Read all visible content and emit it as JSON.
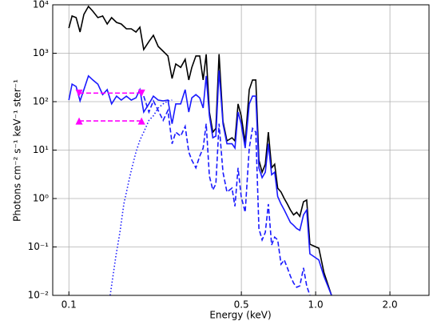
{
  "chart_data": {
    "type": "line",
    "xlabel": "Energy (keV)",
    "ylabel": "Photons cm⁻² s⁻¹ keV⁻¹ ster⁻¹",
    "xscale": "log",
    "yscale": "log",
    "grid": true,
    "xlim": [
      0.086,
      2.88
    ],
    "ylim": [
      0.01,
      10000
    ],
    "xticks": [
      0.1,
      0.5,
      {
        "value": 1,
        "label": "1.0"
      },
      {
        "value": 2,
        "label": "2.0"
      }
    ],
    "yticks": [
      {
        "value": 0.01,
        "label": "10⁻²"
      },
      {
        "value": 0.1,
        "label": "10⁻¹"
      },
      {
        "value": 1,
        "label": "10⁰"
      },
      {
        "value": 10,
        "label": "10¹"
      },
      {
        "value": 100,
        "label": "10²"
      },
      {
        "value": 1000,
        "label": "10³"
      },
      {
        "value": 10000,
        "label": "10⁴"
      }
    ],
    "series": [
      {
        "color": "#000000",
        "linestyle": "solid",
        "x": [
          0.1,
          0.103,
          0.107,
          0.111,
          0.115,
          0.12,
          0.125,
          0.131,
          0.137,
          0.143,
          0.149,
          0.156,
          0.163,
          0.171,
          0.179,
          0.187,
          0.194,
          0.201,
          0.211,
          0.22,
          0.23,
          0.241,
          0.252,
          0.262,
          0.271,
          0.284,
          0.296,
          0.306,
          0.315,
          0.327,
          0.339,
          0.35,
          0.36,
          0.371,
          0.383,
          0.394,
          0.406,
          0.421,
          0.437,
          0.458,
          0.471,
          0.485,
          0.499,
          0.518,
          0.538,
          0.555,
          0.572,
          0.589,
          0.607,
          0.625,
          0.643,
          0.663,
          0.682,
          0.702,
          0.724,
          0.746,
          0.768,
          0.79,
          0.814,
          0.838,
          0.863,
          0.893,
          0.92,
          0.948,
          1.03,
          1.08,
          1.14,
          1.16
        ],
        "values": [
          3300,
          5870,
          5440,
          2740,
          6330,
          9270,
          7370,
          5440,
          5870,
          4010,
          5440,
          4330,
          4010,
          3190,
          3190,
          2740,
          3440,
          1190,
          1740,
          2350,
          1380,
          1100,
          880,
          300,
          600,
          510,
          750,
          280,
          510,
          880,
          880,
          280,
          950,
          61,
          23.5,
          28,
          960,
          39,
          15.5,
          18,
          15.5,
          90,
          51,
          14.3,
          177,
          280,
          280,
          6.2,
          3.5,
          5.1,
          23.5,
          4.3,
          5.1,
          1.64,
          1.36,
          1.0,
          0.77,
          0.58,
          0.46,
          0.52,
          0.43,
          0.86,
          0.93,
          0.114,
          0.094,
          0.03,
          0.013,
          0.01
        ]
      },
      {
        "color": "#1a1aff",
        "linestyle": "solid",
        "x": [
          0.1,
          0.103,
          0.107,
          0.111,
          0.115,
          0.12,
          0.125,
          0.131,
          0.137,
          0.143,
          0.149,
          0.156,
          0.163,
          0.171,
          0.179,
          0.187,
          0.194,
          0.201,
          0.211,
          0.22,
          0.23,
          0.241,
          0.252,
          0.262,
          0.271,
          0.284,
          0.296,
          0.306,
          0.315,
          0.327,
          0.339,
          0.35,
          0.36,
          0.371,
          0.383,
          0.394,
          0.406,
          0.421,
          0.437,
          0.458,
          0.471,
          0.485,
          0.499,
          0.518,
          0.538,
          0.555,
          0.572,
          0.589,
          0.607,
          0.625,
          0.643,
          0.663,
          0.682,
          0.702,
          0.724,
          0.746,
          0.768,
          0.79,
          0.814,
          0.838,
          0.863,
          0.893,
          0.92,
          0.948,
          1.03,
          1.08,
          1.16
        ],
        "values": [
          108,
          230,
          205,
          104,
          177,
          340,
          280,
          230,
          140,
          177,
          90,
          130,
          108,
          130,
          108,
          120,
          177,
          61,
          90,
          130,
          108,
          104,
          108,
          35,
          90,
          90,
          177,
          61,
          120,
          140,
          120,
          74,
          340,
          51,
          18,
          19.5,
          440,
          35,
          13.5,
          13.5,
          11,
          61,
          35,
          11,
          90,
          130,
          130,
          4.3,
          2.7,
          3.5,
          13.5,
          3.1,
          3.5,
          1.1,
          0.77,
          0.58,
          0.43,
          0.32,
          0.28,
          0.24,
          0.22,
          0.46,
          0.58,
          0.072,
          0.054,
          0.025,
          0.01
        ]
      },
      {
        "color": "#1a1aff",
        "linestyle": "dashed",
        "x": [
          0.201,
          0.211,
          0.22,
          0.23,
          0.241,
          0.252,
          0.262,
          0.271,
          0.284,
          0.296,
          0.306,
          0.315,
          0.327,
          0.339,
          0.35,
          0.36,
          0.371,
          0.383,
          0.394,
          0.406,
          0.421,
          0.437,
          0.458,
          0.471,
          0.485,
          0.499,
          0.518,
          0.538,
          0.555,
          0.572,
          0.589,
          0.607,
          0.625,
          0.643,
          0.663,
          0.682,
          0.702,
          0.724,
          0.746,
          0.768,
          0.79,
          0.814,
          0.838,
          0.863,
          0.893,
          0.92,
          0.948
        ],
        "values": [
          130,
          61,
          104,
          66,
          41,
          66,
          13.5,
          23.5,
          19.5,
          31,
          9.1,
          6.2,
          4.3,
          7.5,
          11,
          35,
          2.9,
          1.5,
          2.0,
          35,
          3.5,
          1.36,
          1.64,
          0.69,
          4.3,
          1.1,
          0.52,
          11,
          28,
          23.5,
          0.24,
          0.14,
          0.2,
          0.77,
          0.11,
          0.16,
          0.14,
          0.044,
          0.054,
          0.037,
          0.025,
          0.018,
          0.0147,
          0.0157,
          0.037,
          0.0157,
          0.01
        ]
      },
      {
        "color": "#1a1aff",
        "linestyle": "dotted",
        "x": [
          0.147,
          0.155,
          0.161,
          0.167,
          0.174,
          0.18,
          0.187,
          0.194,
          0.201,
          0.211,
          0.22,
          0.23,
          0.241,
          0.252,
          0.262
        ],
        "values": [
          0.01,
          0.064,
          0.2,
          0.77,
          2.0,
          4.3,
          9.1,
          16,
          23.5,
          41,
          51,
          74,
          90,
          104,
          108
        ]
      },
      {
        "color": "#ff00ff",
        "linestyle": "dashed",
        "marker": "v",
        "x": [
          0.11,
          0.197
        ],
        "values": [
          150,
          150
        ]
      },
      {
        "color": "#ff00ff",
        "linestyle": "dashed",
        "marker": "^",
        "x": [
          0.11,
          0.197
        ],
        "values": [
          40,
          40
        ]
      }
    ]
  }
}
